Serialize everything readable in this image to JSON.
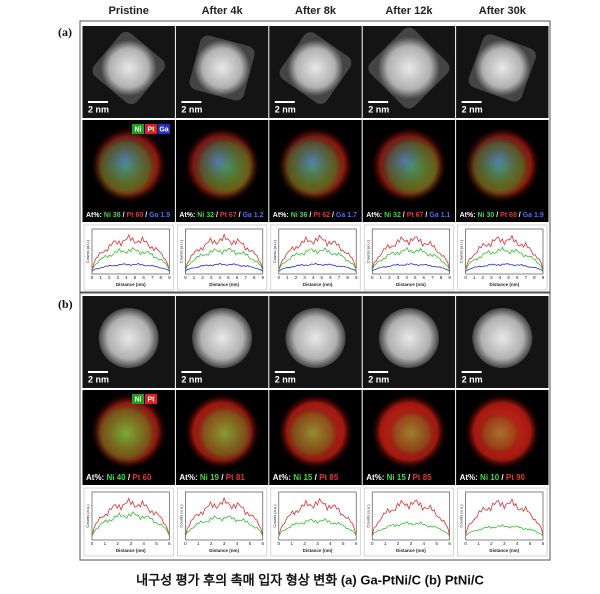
{
  "columns": [
    "Pristine",
    "After 4k",
    "After 8k",
    "After 12k",
    "After 30k"
  ],
  "scale_bar": "2 nm",
  "composition_prefix": "At%:",
  "plot_ylabel": "Counts (a.u.)",
  "plot_xlabel": "Distance (nm)",
  "panels": [
    {
      "label": "(a)",
      "legend": [
        "Ni",
        "Pt",
        "Ga"
      ],
      "xticks": [
        0,
        1,
        2,
        3,
        4,
        5,
        6,
        7,
        8,
        9
      ],
      "compositions": [
        [
          {
            "element": "Ni",
            "value": 38
          },
          {
            "element": "Pt",
            "value": 60
          },
          {
            "element": "Ga",
            "value": 1.9
          }
        ],
        [
          {
            "element": "Ni",
            "value": 32
          },
          {
            "element": "Pt",
            "value": 67
          },
          {
            "element": "Ga",
            "value": 1.2
          }
        ],
        [
          {
            "element": "Ni",
            "value": 36
          },
          {
            "element": "Pt",
            "value": 62
          },
          {
            "element": "Ga",
            "value": 1.7
          }
        ],
        [
          {
            "element": "Ni",
            "value": 32
          },
          {
            "element": "Pt",
            "value": 67
          },
          {
            "element": "Ga",
            "value": 1.1
          }
        ],
        [
          {
            "element": "Ni",
            "value": 30
          },
          {
            "element": "Pt",
            "value": 68
          },
          {
            "element": "Ga",
            "value": 1.9
          }
        ]
      ]
    },
    {
      "label": "(b)",
      "legend": [
        "Ni",
        "Pt"
      ],
      "xticks": [
        0,
        1,
        2,
        3,
        4,
        5,
        6
      ],
      "compositions": [
        [
          {
            "element": "Ni",
            "value": 40
          },
          {
            "element": "Pt",
            "value": 60
          }
        ],
        [
          {
            "element": "Ni",
            "value": 19
          },
          {
            "element": "Pt",
            "value": 81
          }
        ],
        [
          {
            "element": "Ni",
            "value": 15
          },
          {
            "element": "Pt",
            "value": 85
          }
        ],
        [
          {
            "element": "Ni",
            "value": 15
          },
          {
            "element": "Pt",
            "value": 85
          }
        ],
        [
          {
            "element": "Ni",
            "value": 10
          },
          {
            "element": "Pt",
            "value": 90
          }
        ]
      ]
    }
  ],
  "caption": "내구성 평가 후의 촉매 입자 형상 변화 (a) Ga-PtNi/C (b) PtNi/C"
}
